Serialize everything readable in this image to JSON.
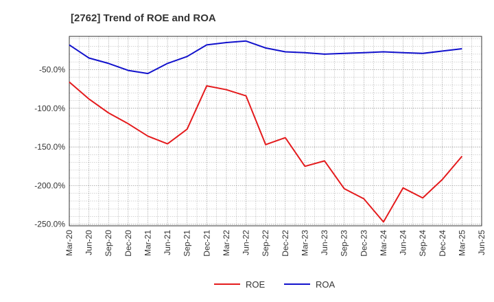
{
  "chart_data": {
    "type": "line",
    "title": "[2762]  Trend of ROE and ROA",
    "xlabel": "",
    "ylabel": "",
    "x": [
      "Mar-20",
      "Jun-20",
      "Sep-20",
      "Dec-20",
      "Mar-21",
      "Jun-21",
      "Sep-21",
      "Dec-21",
      "Mar-22",
      "Jun-22",
      "Sep-22",
      "Dec-22",
      "Mar-23",
      "Jun-23",
      "Sep-23",
      "Dec-23",
      "Mar-24",
      "Jun-24",
      "Sep-24",
      "Dec-24",
      "Mar-25",
      "Jun-25"
    ],
    "y_ticks": [
      -50,
      -100,
      -150,
      -200,
      -250
    ],
    "y_tick_labels": [
      "-50.0%",
      "-100.0%",
      "-150.0%",
      "-200.0%",
      "-250.0%"
    ],
    "ylim": [
      -252,
      -7
    ],
    "grid": true,
    "legend_position": "bottom-center",
    "series": [
      {
        "name": "ROE",
        "color": "#e41a1c",
        "values": [
          [
            0,
            -66
          ],
          [
            1,
            -88
          ],
          [
            2,
            -106
          ],
          [
            3,
            -120
          ],
          [
            4,
            -136
          ],
          [
            5,
            -146
          ],
          [
            6,
            -127
          ],
          [
            7,
            -71
          ],
          [
            8,
            -76
          ],
          [
            9,
            -84
          ],
          [
            10,
            -147
          ],
          [
            11,
            -138
          ],
          [
            12,
            -175
          ],
          [
            13,
            -168
          ],
          [
            14,
            -204
          ],
          [
            15,
            -217
          ],
          [
            16,
            -247
          ],
          [
            17,
            -203
          ],
          [
            18,
            -216
          ],
          [
            19,
            -192
          ],
          [
            20,
            -162
          ]
        ]
      },
      {
        "name": "ROA",
        "color": "#1111cc",
        "values": [
          [
            0,
            -18
          ],
          [
            1,
            -35
          ],
          [
            2,
            -42
          ],
          [
            3,
            -51
          ],
          [
            4,
            -55
          ],
          [
            5,
            -42
          ],
          [
            6,
            -33
          ],
          [
            7,
            -18
          ],
          [
            8,
            -15
          ],
          [
            9,
            -13
          ],
          [
            10,
            -22
          ],
          [
            11,
            -27
          ],
          [
            12,
            -28
          ],
          [
            13,
            -30
          ],
          [
            14,
            -29
          ],
          [
            15,
            -28
          ],
          [
            16,
            -27
          ],
          [
            17,
            -28
          ],
          [
            18,
            -29
          ],
          [
            19,
            -26
          ],
          [
            20,
            -23
          ]
        ]
      }
    ]
  }
}
